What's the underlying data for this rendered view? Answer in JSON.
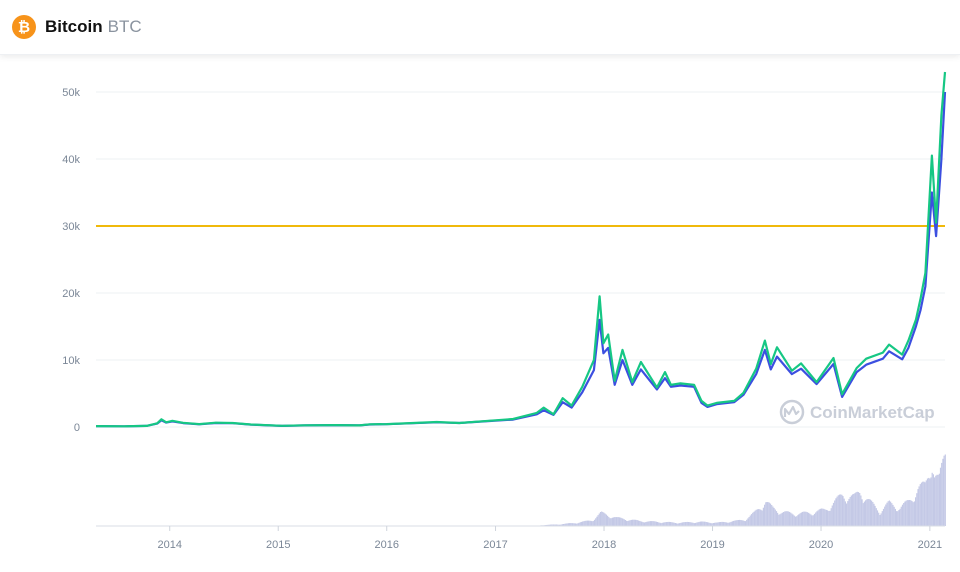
{
  "header": {
    "name": "Bitcoin",
    "symbol": "BTC",
    "icon": "bitcoin-icon",
    "icon_glyph": "₿",
    "icon_color": "#f7931a"
  },
  "watermark": {
    "text": "CoinMarketCap",
    "icon": "coinmarketcap-icon"
  },
  "colors": {
    "price_line": "#16c784",
    "second_line": "#3c4fe0",
    "reference_line": "#f0b90b",
    "volume_bars": "#c4c9e6",
    "grid": "#eef0f3"
  },
  "chart_data": {
    "type": "line",
    "title": "",
    "xlabel": "",
    "ylabel": "",
    "x_ticks": [
      "2014",
      "2015",
      "2016",
      "2017",
      "2018",
      "2019",
      "2020",
      "2021"
    ],
    "y_ticks": [
      "0",
      "10k",
      "20k",
      "30k",
      "40k",
      "50k"
    ],
    "y_tick_values": [
      0,
      10000,
      20000,
      30000,
      40000,
      50000
    ],
    "ylim": [
      0,
      50000
    ],
    "xlim": [
      "2013-04-28",
      "2021-02-21"
    ],
    "grid": true,
    "reference_line": {
      "y": 30000
    },
    "series": [
      {
        "values": [
          [
            "2013-04-28",
            135
          ],
          [
            "2013-08-01",
            105
          ],
          [
            "2013-10-15",
            160
          ],
          [
            "2013-11-20",
            550
          ],
          [
            "2013-12-04",
            1150
          ],
          [
            "2013-12-20",
            700
          ],
          [
            "2014-01-10",
            920
          ],
          [
            "2014-02-15",
            620
          ],
          [
            "2014-04-10",
            430
          ],
          [
            "2014-06-05",
            640
          ],
          [
            "2014-08-01",
            590
          ],
          [
            "2014-10-01",
            380
          ],
          [
            "2015-01-14",
            180
          ],
          [
            "2015-04-01",
            250
          ],
          [
            "2015-07-10",
            290
          ],
          [
            "2015-10-01",
            240
          ],
          [
            "2015-11-05",
            400
          ],
          [
            "2016-01-01",
            430
          ],
          [
            "2016-06-17",
            740
          ],
          [
            "2016-09-01",
            600
          ],
          [
            "2017-01-01",
            1000
          ],
          [
            "2017-03-01",
            1200
          ],
          [
            "2017-05-20",
            2100
          ],
          [
            "2017-06-12",
            2900
          ],
          [
            "2017-07-15",
            1900
          ],
          [
            "2017-08-15",
            4300
          ],
          [
            "2017-09-14",
            3200
          ],
          [
            "2017-10-20",
            6000
          ],
          [
            "2017-11-28",
            10000
          ],
          [
            "2017-12-17",
            19500
          ],
          [
            "2017-12-30",
            12500
          ],
          [
            "2018-01-15",
            13800
          ],
          [
            "2018-02-06",
            6900
          ],
          [
            "2018-03-04",
            11500
          ],
          [
            "2018-04-06",
            6700
          ],
          [
            "2018-05-05",
            9700
          ],
          [
            "2018-06-28",
            5900
          ],
          [
            "2018-07-25",
            8200
          ],
          [
            "2018-08-14",
            6300
          ],
          [
            "2018-09-15",
            6500
          ],
          [
            "2018-10-31",
            6300
          ],
          [
            "2018-11-25",
            3900
          ],
          [
            "2018-12-15",
            3200
          ],
          [
            "2019-01-15",
            3600
          ],
          [
            "2019-03-15",
            3900
          ],
          [
            "2019-04-15",
            5100
          ],
          [
            "2019-05-28",
            8700
          ],
          [
            "2019-06-26",
            12900
          ],
          [
            "2019-07-16",
            9400
          ],
          [
            "2019-08-06",
            11900
          ],
          [
            "2019-09-25",
            8400
          ],
          [
            "2019-10-26",
            9500
          ],
          [
            "2019-12-17",
            6700
          ],
          [
            "2020-02-12",
            10300
          ],
          [
            "2020-03-12",
            4900
          ],
          [
            "2020-04-30",
            8800
          ],
          [
            "2020-06-01",
            10200
          ],
          [
            "2020-07-27",
            11100
          ],
          [
            "2020-08-17",
            12300
          ],
          [
            "2020-09-30",
            10800
          ],
          [
            "2020-10-21",
            12900
          ],
          [
            "2020-11-15",
            16000
          ],
          [
            "2020-12-01",
            19200
          ],
          [
            "2020-12-17",
            23000
          ],
          [
            "2021-01-08",
            40500
          ],
          [
            "2021-01-22",
            30500
          ],
          [
            "2021-02-09",
            46500
          ],
          [
            "2021-02-21",
            57000
          ]
        ]
      },
      {
        "values": [
          [
            "2013-04-28",
            135
          ],
          [
            "2013-08-01",
            105
          ],
          [
            "2013-10-15",
            160
          ],
          [
            "2013-11-20",
            500
          ],
          [
            "2013-12-04",
            1000
          ],
          [
            "2013-12-20",
            650
          ],
          [
            "2014-01-10",
            830
          ],
          [
            "2014-02-15",
            580
          ],
          [
            "2014-04-10",
            410
          ],
          [
            "2014-06-05",
            600
          ],
          [
            "2014-08-01",
            560
          ],
          [
            "2014-10-01",
            360
          ],
          [
            "2015-01-14",
            170
          ],
          [
            "2015-04-01",
            240
          ],
          [
            "2015-07-10",
            280
          ],
          [
            "2015-10-01",
            235
          ],
          [
            "2015-11-05",
            380
          ],
          [
            "2016-01-01",
            420
          ],
          [
            "2016-06-17",
            700
          ],
          [
            "2016-09-01",
            590
          ],
          [
            "2017-01-01",
            950
          ],
          [
            "2017-03-01",
            1100
          ],
          [
            "2017-05-20",
            1900
          ],
          [
            "2017-06-12",
            2500
          ],
          [
            "2017-07-15",
            1800
          ],
          [
            "2017-08-15",
            3700
          ],
          [
            "2017-09-14",
            2900
          ],
          [
            "2017-10-20",
            5200
          ],
          [
            "2017-11-28",
            8500
          ],
          [
            "2017-12-17",
            16000
          ],
          [
            "2017-12-30",
            11000
          ],
          [
            "2018-01-15",
            11800
          ],
          [
            "2018-02-06",
            6300
          ],
          [
            "2018-03-04",
            10000
          ],
          [
            "2018-04-06",
            6300
          ],
          [
            "2018-05-05",
            8600
          ],
          [
            "2018-06-28",
            5600
          ],
          [
            "2018-07-25",
            7300
          ],
          [
            "2018-08-14",
            6000
          ],
          [
            "2018-09-15",
            6200
          ],
          [
            "2018-10-31",
            6000
          ],
          [
            "2018-11-25",
            3600
          ],
          [
            "2018-12-15",
            3000
          ],
          [
            "2019-01-15",
            3400
          ],
          [
            "2019-03-15",
            3700
          ],
          [
            "2019-04-15",
            4800
          ],
          [
            "2019-05-28",
            7900
          ],
          [
            "2019-06-26",
            11500
          ],
          [
            "2019-07-16",
            8600
          ],
          [
            "2019-08-06",
            10500
          ],
          [
            "2019-09-25",
            7900
          ],
          [
            "2019-10-26",
            8700
          ],
          [
            "2019-12-17",
            6400
          ],
          [
            "2020-02-12",
            9400
          ],
          [
            "2020-03-12",
            4500
          ],
          [
            "2020-04-30",
            8200
          ],
          [
            "2020-06-01",
            9300
          ],
          [
            "2020-07-27",
            10200
          ],
          [
            "2020-08-17",
            11300
          ],
          [
            "2020-09-30",
            10100
          ],
          [
            "2020-10-21",
            11800
          ],
          [
            "2020-11-15",
            15000
          ],
          [
            "2020-12-01",
            17500
          ],
          [
            "2020-12-17",
            21000
          ],
          [
            "2021-01-08",
            35000
          ],
          [
            "2021-01-22",
            28500
          ],
          [
            "2021-02-09",
            40000
          ],
          [
            "2021-02-21",
            50000
          ]
        ]
      }
    ],
    "volume": {
      "relative_values": [
        [
          "2017-06-01",
          0.01
        ],
        [
          "2017-08-01",
          0.02
        ],
        [
          "2017-10-01",
          0.04
        ],
        [
          "2017-11-20",
          0.07
        ],
        [
          "2017-12-20",
          0.16
        ],
        [
          "2018-01-15",
          0.13
        ],
        [
          "2018-02-10",
          0.1
        ],
        [
          "2018-03-20",
          0.08
        ],
        [
          "2018-05-01",
          0.06
        ],
        [
          "2018-07-01",
          0.05
        ],
        [
          "2018-09-01",
          0.04
        ],
        [
          "2018-11-20",
          0.05
        ],
        [
          "2019-01-15",
          0.04
        ],
        [
          "2019-03-15",
          0.06
        ],
        [
          "2019-04-20",
          0.08
        ],
        [
          "2019-05-20",
          0.16
        ],
        [
          "2019-06-26",
          0.3
        ],
        [
          "2019-07-20",
          0.22
        ],
        [
          "2019-08-20",
          0.17
        ],
        [
          "2019-10-01",
          0.15
        ],
        [
          "2019-11-20",
          0.16
        ],
        [
          "2020-01-15",
          0.2
        ],
        [
          "2020-02-15",
          0.3
        ],
        [
          "2020-03-12",
          0.38
        ],
        [
          "2020-04-20",
          0.35
        ],
        [
          "2020-05-10",
          0.42
        ],
        [
          "2020-06-10",
          0.3
        ],
        [
          "2020-07-15",
          0.18
        ],
        [
          "2020-08-15",
          0.28
        ],
        [
          "2020-09-20",
          0.22
        ],
        [
          "2020-10-20",
          0.3
        ],
        [
          "2020-11-20",
          0.45
        ],
        [
          "2020-12-15",
          0.5
        ],
        [
          "2021-01-05",
          0.82
        ],
        [
          "2021-01-15",
          0.6
        ],
        [
          "2021-01-30",
          0.55
        ],
        [
          "2021-02-10",
          0.75
        ],
        [
          "2021-02-21",
          1.0
        ]
      ]
    }
  }
}
